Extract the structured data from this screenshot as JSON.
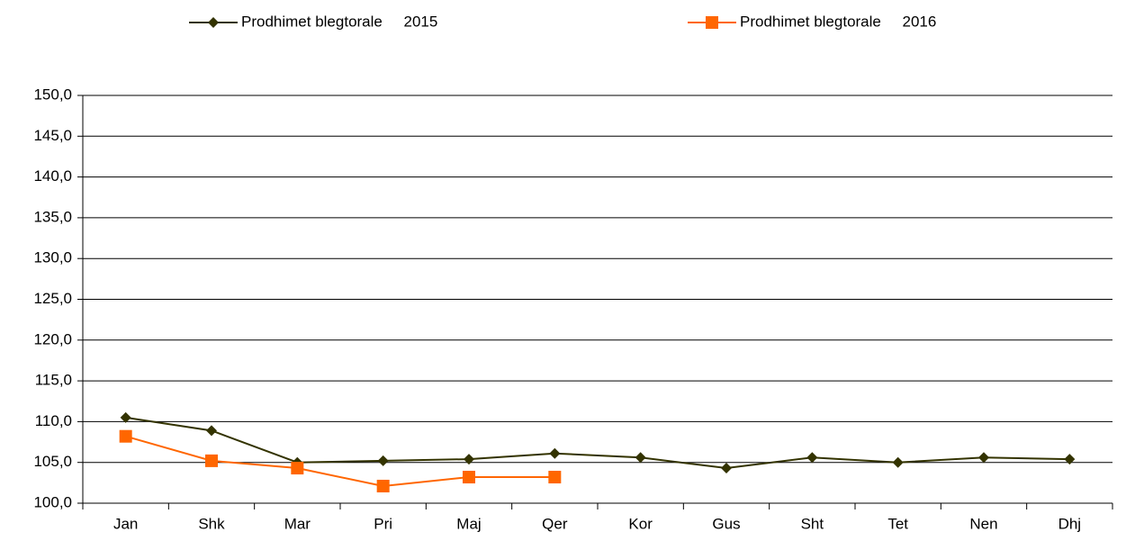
{
  "chart_data": {
    "type": "line",
    "categories": [
      "Jan",
      "Shk",
      "Mar",
      "Pri",
      "Maj",
      "Qer",
      "Kor",
      "Gus",
      "Sht",
      "Tet",
      "Nen",
      "Dhj"
    ],
    "series": [
      {
        "name": "Prodhimet blegtorale     2015",
        "color": "#333300",
        "marker": "diamond",
        "values": [
          110.5,
          108.9,
          105.0,
          105.2,
          105.4,
          106.1,
          105.6,
          104.3,
          105.6,
          105.0,
          105.6,
          105.4
        ]
      },
      {
        "name": "Prodhimet blegtorale     2016",
        "color": "#ff6600",
        "marker": "square",
        "values": [
          108.2,
          105.2,
          104.3,
          102.1,
          103.2,
          103.2,
          null,
          null,
          null,
          null,
          null,
          null
        ]
      }
    ],
    "ylim": [
      100,
      150
    ],
    "yticks": [
      {
        "value": 100,
        "label": "100,0"
      },
      {
        "value": 105,
        "label": "105,0"
      },
      {
        "value": 110,
        "label": "110,0"
      },
      {
        "value": 115,
        "label": "115,0"
      },
      {
        "value": 120,
        "label": "120,0"
      },
      {
        "value": 125,
        "label": "125,0"
      },
      {
        "value": 130,
        "label": "130,0"
      },
      {
        "value": 135,
        "label": "135,0"
      },
      {
        "value": 140,
        "label": "140,0"
      },
      {
        "value": 145,
        "label": "145,0"
      },
      {
        "value": 150,
        "label": "150,0"
      }
    ],
    "grid": true,
    "legend": "top"
  }
}
